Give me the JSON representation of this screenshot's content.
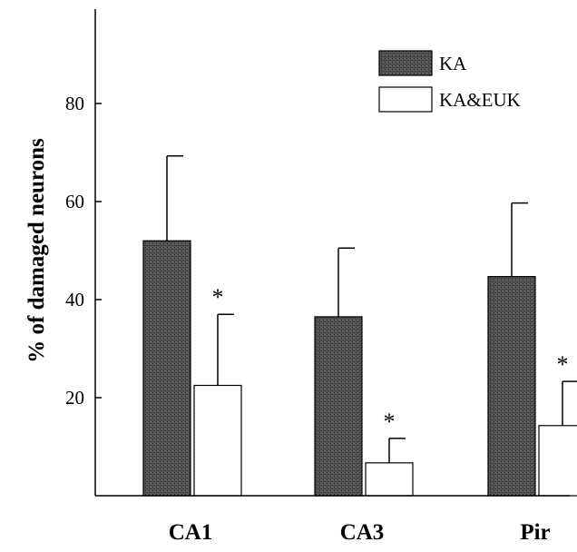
{
  "chart_data": {
    "type": "bar",
    "title": "",
    "xlabel": "",
    "ylabel": "% of damaged neurons",
    "ylim": [
      0,
      100
    ],
    "yticks": [
      20,
      40,
      60,
      80
    ],
    "grid": false,
    "legend_position": "top-right",
    "categories": [
      "CA1",
      "CA3",
      "Pir"
    ],
    "series": [
      {
        "name": "KA",
        "values": [
          52,
          36.5,
          44.7
        ],
        "errors": [
          17.3,
          14,
          15
        ],
        "fill": "patterned-dark",
        "color": "#4a4a4a",
        "significance": [
          "",
          "",
          ""
        ]
      },
      {
        "name": "KA&EUK",
        "values": [
          22.5,
          6.7,
          14.3
        ],
        "errors": [
          14.5,
          5,
          9
        ],
        "fill": "white",
        "color": "#ffffff",
        "significance": [
          "*",
          "*",
          "*"
        ]
      }
    ]
  }
}
